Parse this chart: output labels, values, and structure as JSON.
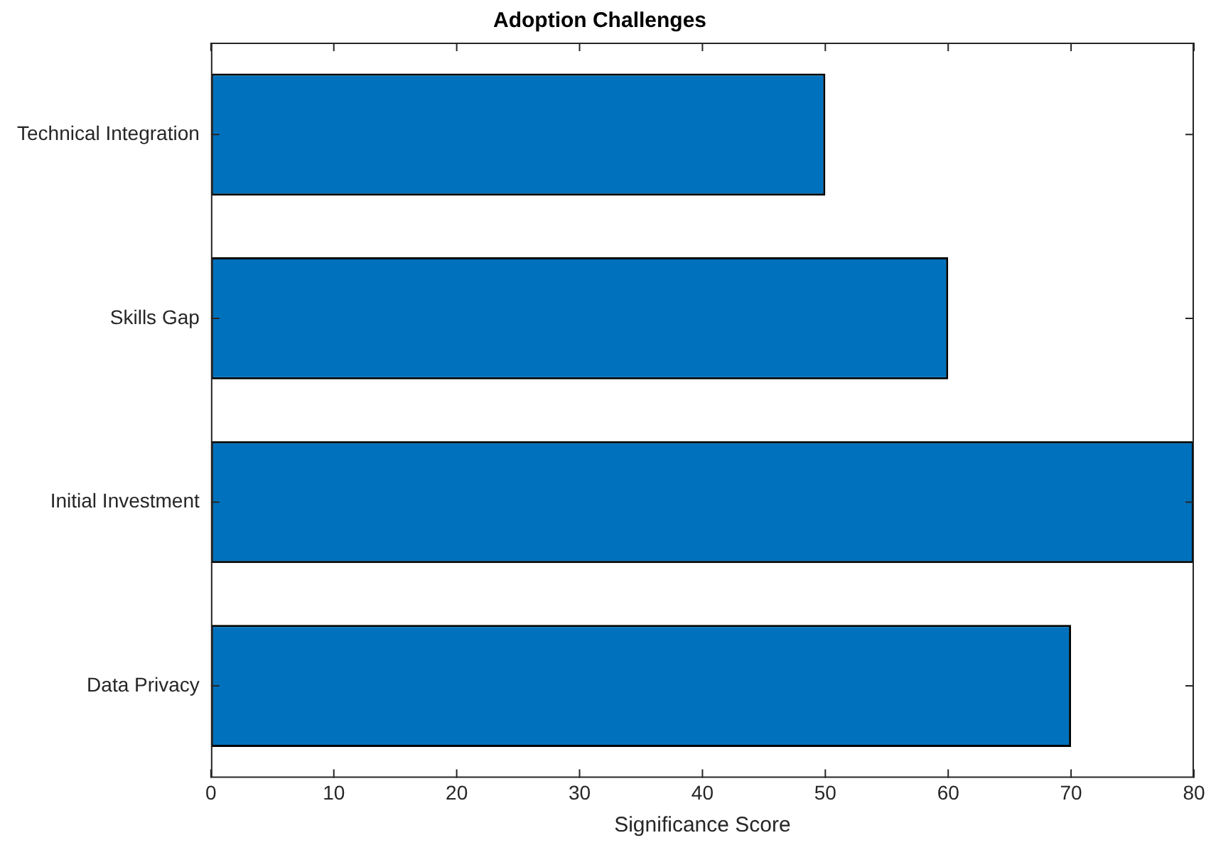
{
  "chart_data": {
    "type": "bar",
    "orientation": "horizontal",
    "title": "Adoption Challenges",
    "xlabel": "Significance Score",
    "categories": [
      "Technical Integration",
      "Skills Gap",
      "Initial Investment",
      "Data Privacy"
    ],
    "values": [
      50,
      60,
      80,
      70
    ],
    "color": "#0072bd",
    "xlim": [
      0,
      80
    ],
    "xticks": [
      0,
      10,
      20,
      30,
      40,
      50,
      60,
      70,
      80
    ],
    "grid": false,
    "legend": false
  }
}
